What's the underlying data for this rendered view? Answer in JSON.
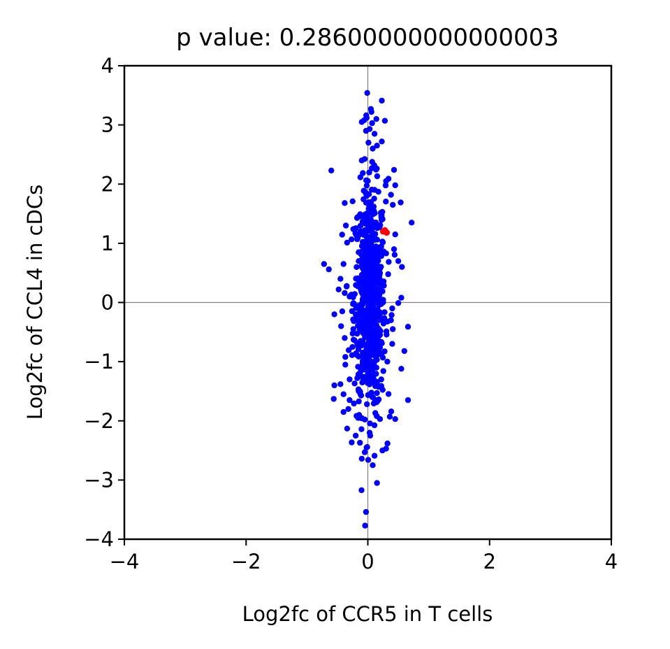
{
  "chart_data": {
    "type": "scatter",
    "title": "p value: 0.28600000000000003",
    "xlabel": "Log2fc of CCR5 in T cells",
    "ylabel": "Log2fc of CCL4 in cDCs",
    "xlim": [
      -4,
      4
    ],
    "ylim": [
      -4,
      4
    ],
    "xticks": [
      -4,
      -2,
      0,
      2,
      4
    ],
    "yticks": [
      -4,
      -3,
      -2,
      -1,
      0,
      1,
      2,
      3,
      4
    ],
    "xtick_labels": [
      "−4",
      "−2",
      "0",
      "2",
      "4"
    ],
    "ytick_labels": [
      "−4",
      "−3",
      "−2",
      "−1",
      "0",
      "1",
      "2",
      "3",
      "4"
    ],
    "reference_lines": {
      "x": 0,
      "y": 0,
      "color": "#808080"
    },
    "grid": false,
    "series": [
      {
        "color": "#0000ff",
        "points": [
          [
            -0.01,
            3.54
          ],
          [
            0.23,
            3.41
          ],
          [
            0.05,
            3.27
          ],
          [
            0.06,
            3.22
          ],
          [
            -0.02,
            3.12
          ],
          [
            0.14,
            3.1
          ],
          [
            0.28,
            3.07
          ],
          [
            -0.1,
            3.05
          ],
          [
            0.07,
            3.03
          ],
          [
            -0.06,
            3.08
          ],
          [
            -0.03,
            2.9
          ],
          [
            0.11,
            2.85
          ],
          [
            0.03,
            2.93
          ],
          [
            0.01,
            2.7
          ],
          [
            0.15,
            2.65
          ],
          [
            0.08,
            2.6
          ],
          [
            0.23,
            2.72
          ],
          [
            -0.1,
            2.4
          ],
          [
            -0.6,
            2.23
          ],
          [
            0.3,
            2.05
          ],
          [
            0.43,
            2.24
          ],
          [
            0.34,
            2.09
          ],
          [
            0.45,
            1.98
          ],
          [
            0.38,
            1.82
          ],
          [
            0.41,
            1.65
          ],
          [
            0.54,
            1.69
          ],
          [
            -0.25,
            1.71
          ],
          [
            -0.38,
            1.68
          ],
          [
            -0.36,
            1.3
          ],
          [
            0.72,
            1.35
          ],
          [
            0.45,
            1.15
          ],
          [
            0.43,
            0.9
          ],
          [
            0.5,
            0.7
          ],
          [
            0.56,
            0.6
          ],
          [
            -0.4,
            0.65
          ],
          [
            -0.72,
            0.65
          ],
          [
            -0.64,
            0.56
          ],
          [
            -0.45,
            0.4
          ],
          [
            -0.3,
            0.1
          ],
          [
            -0.38,
            0.16
          ],
          [
            0.55,
            0.08
          ],
          [
            -0.48,
            0.22
          ],
          [
            0.5,
            -0.01
          ],
          [
            0.4,
            -0.1
          ],
          [
            0.38,
            -0.3
          ],
          [
            -0.42,
            -0.15
          ],
          [
            -0.55,
            -0.2
          ],
          [
            -0.44,
            -0.4
          ],
          [
            0.41,
            -0.45
          ],
          [
            0.66,
            -0.41
          ],
          [
            -0.38,
            -0.6
          ],
          [
            0.4,
            -0.7
          ],
          [
            0.6,
            -0.82
          ],
          [
            -0.37,
            -0.92
          ],
          [
            0.32,
            -1.0
          ],
          [
            -0.37,
            -1.05
          ],
          [
            0.55,
            -1.12
          ],
          [
            -0.3,
            -1.3
          ],
          [
            -0.45,
            -1.38
          ],
          [
            -0.55,
            -1.4
          ],
          [
            -0.4,
            -1.55
          ],
          [
            -0.3,
            -1.65
          ],
          [
            -0.56,
            -1.63
          ],
          [
            0.66,
            -1.65
          ],
          [
            -0.32,
            -1.8
          ],
          [
            0.36,
            -1.93
          ],
          [
            -0.4,
            -1.85
          ],
          [
            -0.16,
            -1.95
          ],
          [
            0.45,
            -1.97
          ],
          [
            0.2,
            -1.97
          ],
          [
            -0.34,
            -2.13
          ],
          [
            -0.2,
            -2.25
          ],
          [
            0.03,
            -2.2
          ],
          [
            -0.13,
            -2.37
          ],
          [
            0.24,
            -2.5
          ],
          [
            0.3,
            -2.47
          ],
          [
            -0.05,
            -2.53
          ],
          [
            0.11,
            -2.59
          ],
          [
            -0.1,
            -2.64
          ],
          [
            0.08,
            -2.75
          ],
          [
            0.15,
            -3.05
          ],
          [
            -0.03,
            -3.54
          ],
          [
            -0.02,
            1.8
          ],
          [
            0.1,
            1.55
          ],
          [
            -0.12,
            1.2
          ],
          [
            0.05,
            1.0
          ],
          [
            0.2,
            0.85
          ],
          [
            -0.15,
            0.7
          ],
          [
            0.0,
            0.5
          ],
          [
            0.1,
            0.3
          ],
          [
            -0.08,
            0.15
          ],
          [
            0.18,
            0.0
          ],
          [
            -0.2,
            -0.2
          ],
          [
            0.05,
            -0.35
          ],
          [
            0.2,
            -0.55
          ],
          [
            -0.1,
            -0.7
          ],
          [
            0.12,
            -0.9
          ],
          [
            -0.05,
            -1.1
          ],
          [
            0.22,
            -1.3
          ],
          [
            -0.15,
            -1.5
          ]
        ]
      },
      {
        "color": "#ff0000",
        "points": [
          [
            0.28,
            1.22
          ],
          [
            0.31,
            1.18
          ],
          [
            0.25,
            1.2
          ]
        ]
      }
    ]
  }
}
